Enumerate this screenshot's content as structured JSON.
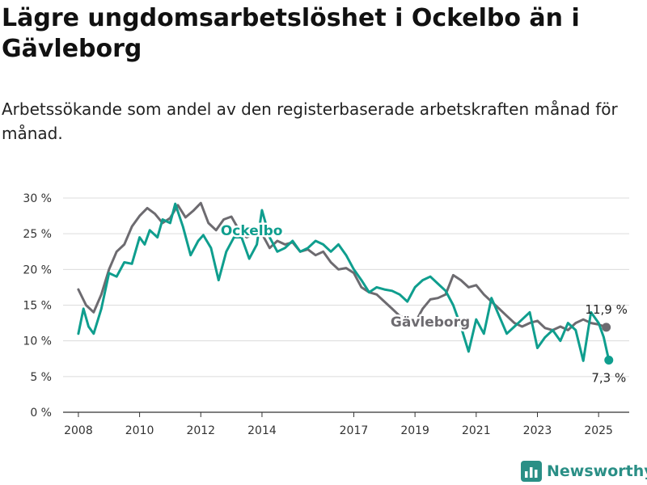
{
  "title": "Lägre ungdomsarbetslöshet i Ockelbo än i Gävleborg",
  "subtitle": "Arbetssökande som andel av den registerbaserade arbetskraften månad för månad.",
  "brand": {
    "name": "Newsworthy"
  },
  "colors": {
    "ockelbo": "#0f9e8e",
    "gavleborg": "#6d6b70",
    "grid": "#dcdcdc",
    "axis": "#333333"
  },
  "chart_data": {
    "type": "line",
    "title": "Lägre ungdomsarbetslöshet i Ockelbo än i Gävleborg",
    "xlabel": "",
    "ylabel": "",
    "x_ticks": [
      "2008",
      "2010",
      "2012",
      "2014",
      "2017",
      "2019",
      "2021",
      "2023",
      "2025"
    ],
    "y_ticks": [
      "0 %",
      "5 %",
      "10 %",
      "15 %",
      "20 %",
      "25 %",
      "30 %"
    ],
    "ylim": [
      0,
      30
    ],
    "grid": true,
    "series": [
      {
        "name": "Gävleborg",
        "end_label": "11,9 %",
        "points": [
          [
            "2008-01",
            17.2
          ],
          [
            "2008-04",
            15.0
          ],
          [
            "2008-07",
            14.0
          ],
          [
            "2008-10",
            16.5
          ],
          [
            "2009-01",
            20.0
          ],
          [
            "2009-04",
            22.5
          ],
          [
            "2009-07",
            23.5
          ],
          [
            "2009-10",
            26.0
          ],
          [
            "2010-01",
            27.5
          ],
          [
            "2010-04",
            28.6
          ],
          [
            "2010-07",
            27.8
          ],
          [
            "2010-10",
            26.5
          ],
          [
            "2011-01",
            27.2
          ],
          [
            "2011-04",
            29.0
          ],
          [
            "2011-07",
            27.3
          ],
          [
            "2011-10",
            28.2
          ],
          [
            "2012-01",
            29.3
          ],
          [
            "2012-04",
            26.5
          ],
          [
            "2012-07",
            25.5
          ],
          [
            "2012-10",
            27.0
          ],
          [
            "2013-01",
            27.4
          ],
          [
            "2013-04",
            25.5
          ],
          [
            "2013-07",
            24.5
          ],
          [
            "2013-10",
            25.0
          ],
          [
            "2014-01",
            25.0
          ],
          [
            "2014-04",
            23.0
          ],
          [
            "2014-07",
            24.0
          ],
          [
            "2014-10",
            23.5
          ],
          [
            "2015-01",
            23.8
          ],
          [
            "2015-04",
            22.5
          ],
          [
            "2015-07",
            22.8
          ],
          [
            "2015-10",
            22.0
          ],
          [
            "2016-01",
            22.5
          ],
          [
            "2016-04",
            21.0
          ],
          [
            "2016-07",
            20.0
          ],
          [
            "2016-10",
            20.2
          ],
          [
            "2017-01",
            19.5
          ],
          [
            "2017-04",
            17.5
          ],
          [
            "2017-07",
            16.8
          ],
          [
            "2017-10",
            16.5
          ],
          [
            "2018-01",
            15.5
          ],
          [
            "2018-04",
            14.5
          ],
          [
            "2018-07",
            13.5
          ],
          [
            "2018-10",
            13.0
          ],
          [
            "2019-01",
            12.5
          ],
          [
            "2019-04",
            14.5
          ],
          [
            "2019-07",
            15.8
          ],
          [
            "2019-10",
            16.0
          ],
          [
            "2020-01",
            16.5
          ],
          [
            "2020-04",
            19.2
          ],
          [
            "2020-07",
            18.5
          ],
          [
            "2020-10",
            17.5
          ],
          [
            "2021-01",
            17.8
          ],
          [
            "2021-04",
            16.5
          ],
          [
            "2021-07",
            15.5
          ],
          [
            "2021-10",
            14.5
          ],
          [
            "2022-01",
            13.5
          ],
          [
            "2022-04",
            12.5
          ],
          [
            "2022-07",
            12.0
          ],
          [
            "2022-10",
            12.5
          ],
          [
            "2023-01",
            12.8
          ],
          [
            "2023-04",
            11.8
          ],
          [
            "2023-07",
            11.5
          ],
          [
            "2023-10",
            12.0
          ],
          [
            "2024-01",
            11.5
          ],
          [
            "2024-04",
            12.5
          ],
          [
            "2024-07",
            13.0
          ],
          [
            "2024-10",
            12.5
          ],
          [
            "2025-01",
            12.3
          ],
          [
            "2025-04",
            11.9
          ]
        ]
      },
      {
        "name": "Ockelbo",
        "end_label": "7,3 %",
        "points": [
          [
            "2008-01",
            11.0
          ],
          [
            "2008-03",
            14.5
          ],
          [
            "2008-05",
            12.0
          ],
          [
            "2008-07",
            11.0
          ],
          [
            "2008-10",
            14.5
          ],
          [
            "2009-01",
            19.5
          ],
          [
            "2009-04",
            19.0
          ],
          [
            "2009-07",
            21.0
          ],
          [
            "2009-10",
            20.8
          ],
          [
            "2010-01",
            24.5
          ],
          [
            "2010-03",
            23.5
          ],
          [
            "2010-05",
            25.5
          ],
          [
            "2010-08",
            24.5
          ],
          [
            "2010-10",
            27.0
          ],
          [
            "2011-01",
            26.5
          ],
          [
            "2011-03",
            29.2
          ],
          [
            "2011-06",
            26.0
          ],
          [
            "2011-09",
            22.0
          ],
          [
            "2011-12",
            24.0
          ],
          [
            "2012-02",
            24.8
          ],
          [
            "2012-05",
            23.0
          ],
          [
            "2012-08",
            18.5
          ],
          [
            "2012-11",
            22.5
          ],
          [
            "2013-02",
            24.5
          ],
          [
            "2013-05",
            24.5
          ],
          [
            "2013-08",
            21.5
          ],
          [
            "2013-11",
            23.5
          ],
          [
            "2014-01",
            28.3
          ],
          [
            "2014-04",
            24.5
          ],
          [
            "2014-07",
            22.5
          ],
          [
            "2014-10",
            23.0
          ],
          [
            "2015-01",
            24.0
          ],
          [
            "2015-04",
            22.5
          ],
          [
            "2015-07",
            23.0
          ],
          [
            "2015-10",
            24.0
          ],
          [
            "2016-01",
            23.5
          ],
          [
            "2016-04",
            22.5
          ],
          [
            "2016-07",
            23.5
          ],
          [
            "2016-10",
            22.0
          ],
          [
            "2017-01",
            20.0
          ],
          [
            "2017-04",
            18.5
          ],
          [
            "2017-07",
            16.8
          ],
          [
            "2017-10",
            17.5
          ],
          [
            "2018-01",
            17.2
          ],
          [
            "2018-04",
            17.0
          ],
          [
            "2018-07",
            16.5
          ],
          [
            "2018-10",
            15.5
          ],
          [
            "2019-01",
            17.5
          ],
          [
            "2019-04",
            18.5
          ],
          [
            "2019-07",
            19.0
          ],
          [
            "2019-10",
            18.0
          ],
          [
            "2020-01",
            17.0
          ],
          [
            "2020-04",
            15.0
          ],
          [
            "2020-07",
            12.0
          ],
          [
            "2020-10",
            8.5
          ],
          [
            "2021-01",
            13.0
          ],
          [
            "2021-04",
            11.0
          ],
          [
            "2021-07",
            16.0
          ],
          [
            "2021-10",
            13.5
          ],
          [
            "2022-01",
            11.0
          ],
          [
            "2022-04",
            12.0
          ],
          [
            "2022-07",
            13.0
          ],
          [
            "2022-10",
            14.0
          ],
          [
            "2023-01",
            9.0
          ],
          [
            "2023-04",
            10.5
          ],
          [
            "2023-07",
            11.5
          ],
          [
            "2023-10",
            10.0
          ],
          [
            "2024-01",
            12.5
          ],
          [
            "2024-04",
            11.5
          ],
          [
            "2024-07",
            7.2
          ],
          [
            "2024-10",
            14.0
          ],
          [
            "2025-01",
            12.5
          ],
          [
            "2025-03",
            10.5
          ],
          [
            "2025-05",
            7.3
          ]
        ]
      }
    ],
    "annotations": [
      {
        "text": "Ockelbo",
        "series": "Ockelbo"
      },
      {
        "text": "Gävleborg",
        "series": "Gävleborg"
      }
    ]
  }
}
